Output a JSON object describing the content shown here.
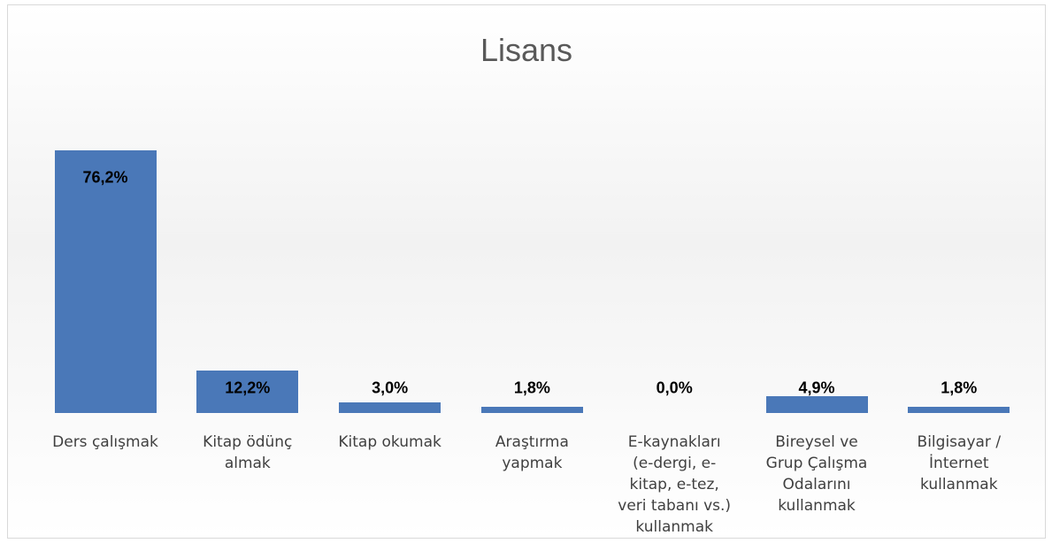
{
  "chart_data": {
    "type": "bar",
    "title": "Lisans",
    "categories": [
      "Ders çalışmak",
      "Kitap ödünç almak",
      "Kitap okumak",
      "Araştırma yapmak",
      "E-kaynakları (e-dergi, e-kitap, e-tez, veri tabanı vs.) kullanmak",
      "Bireysel ve Grup Çalışma Odalarını kullanmak",
      "Bilgisayar / İnternet kullanmak"
    ],
    "values": [
      76.2,
      12.2,
      3.0,
      1.8,
      0.0,
      4.9,
      1.8
    ],
    "value_labels": [
      "76,2%",
      "12,2%",
      "3,0%",
      "1,8%",
      "0,0%",
      "4,9%",
      "1,8%"
    ],
    "color": "#4a78b8"
  }
}
